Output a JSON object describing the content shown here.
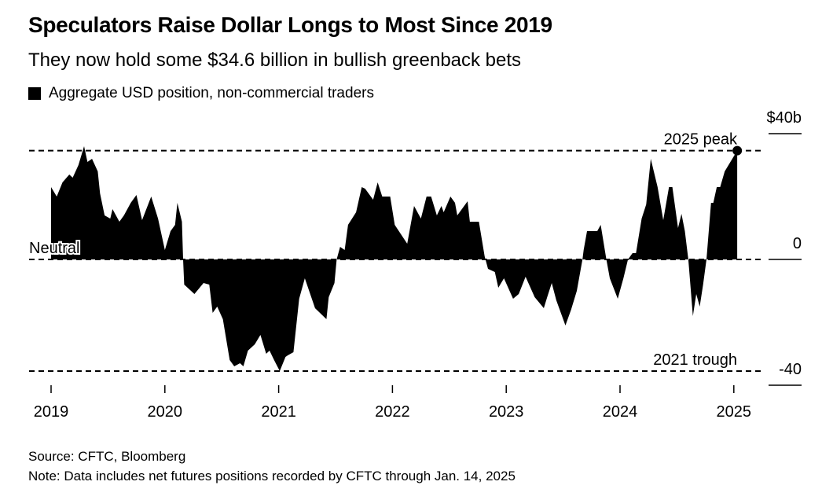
{
  "header": {
    "title": "Speculators Raise Dollar Longs to Most Since 2019",
    "subtitle": "They now hold some $34.6 billion in bullish greenback bets"
  },
  "footer": {
    "source": "Source: CFTC, Bloomberg",
    "note": "Note: Data includes net futures positions recorded by CFTC through Jan. 14, 2025"
  },
  "chart_data": {
    "type": "area",
    "series": [
      {
        "name": "Aggregate USD position, non-commercial traders",
        "color": "#000000",
        "x": [
          2019.0,
          2019.05,
          2019.1,
          2019.16,
          2019.19,
          2019.24,
          2019.29,
          2019.32,
          2019.36,
          2019.41,
          2019.43,
          2019.47,
          2019.52,
          2019.54,
          2019.6,
          2019.64,
          2019.7,
          2019.75,
          2019.8,
          2019.88,
          2019.94,
          2020.0,
          2020.05,
          2020.09,
          2020.11,
          2020.15,
          2020.16,
          2020.17,
          2020.26,
          2020.34,
          2020.39,
          2020.42,
          2020.46,
          2020.51,
          2020.57,
          2020.61,
          2020.66,
          2020.69,
          2020.73,
          2020.79,
          2020.84,
          2020.89,
          2020.92,
          2020.96,
          2021.01,
          2021.06,
          2021.08,
          2021.13,
          2021.18,
          2021.23,
          2021.32,
          2021.42,
          2021.44,
          2021.49,
          2021.51,
          2021.54,
          2021.58,
          2021.61,
          2021.68,
          2021.73,
          2021.76,
          2021.83,
          2021.87,
          2021.91,
          2021.98,
          2022.02,
          2022.13,
          2022.19,
          2022.25,
          2022.3,
          2022.34,
          2022.39,
          2022.43,
          2022.45,
          2022.51,
          2022.55,
          2022.57,
          2022.66,
          2022.68,
          2022.76,
          2022.81,
          2022.84,
          2022.9,
          2022.93,
          2022.98,
          2023.06,
          2023.11,
          2023.17,
          2023.25,
          2023.33,
          2023.36,
          2023.4,
          2023.44,
          2023.52,
          2023.57,
          2023.62,
          2023.67,
          2023.68,
          2023.71,
          2023.8,
          2023.83,
          2023.88,
          2023.91,
          2023.98,
          2024.03,
          2024.07,
          2024.11,
          2024.14,
          2024.19,
          2024.23,
          2024.27,
          2024.33,
          2024.38,
          2024.43,
          2024.46,
          2024.51,
          2024.54,
          2024.57,
          2024.6,
          2024.64,
          2024.67,
          2024.7,
          2024.73,
          2024.76,
          2024.8,
          2024.82,
          2024.85,
          2024.88,
          2024.92,
          2025.03
        ],
        "values": [
          23,
          20,
          24.5,
          27,
          26,
          30,
          36,
          31,
          32,
          28,
          21,
          14,
          13,
          16,
          12,
          14,
          18,
          20.5,
          12.5,
          20,
          13,
          3,
          9,
          11,
          18,
          12,
          0,
          -8,
          -11,
          -7.5,
          -8,
          -17,
          -15,
          -19,
          -32,
          -34,
          -33,
          -34,
          -29,
          -27,
          -24,
          -30,
          -29,
          -32,
          -35.5,
          -31,
          -30.5,
          -29.5,
          -12.5,
          -6,
          -15.5,
          -19,
          -12,
          -7.5,
          0,
          4,
          3,
          11,
          15,
          23,
          22.5,
          19,
          24.5,
          20,
          20,
          11,
          5,
          17,
          13,
          20,
          20,
          14,
          17,
          15,
          20,
          18,
          14,
          18.5,
          12,
          12,
          1,
          -3,
          -4,
          -9,
          -6,
          -12.5,
          -11,
          -5.5,
          -12,
          -15.5,
          -12,
          -7.5,
          -13,
          -21,
          -16,
          -10,
          0,
          3,
          9,
          9,
          11,
          0,
          -6,
          -12.5,
          -6,
          0,
          2,
          2,
          13,
          17.5,
          32,
          23,
          12.5,
          23,
          23,
          10,
          14.5,
          9,
          0,
          -18,
          -11,
          -15,
          -8,
          0,
          18,
          18,
          23,
          23,
          28,
          34.6
        ]
      }
    ],
    "xlim": [
      2019,
      2025.2
    ],
    "ylim": [
      -40,
      40
    ],
    "x_ticks": [
      "2019",
      "2020",
      "2021",
      "2022",
      "2023",
      "2024",
      "2025"
    ],
    "y_ticks": [
      {
        "value": 40,
        "label": "$40b"
      },
      {
        "value": 0,
        "label": "0"
      },
      {
        "value": -40,
        "label": "-40"
      }
    ],
    "reference_lines": [
      {
        "value": 34.6,
        "label": "2025 peak"
      },
      {
        "value": 0,
        "label": "Neutral"
      },
      {
        "value": -35.5,
        "label": "2021 trough"
      }
    ],
    "legend_position": "top-left",
    "grid": false
  }
}
